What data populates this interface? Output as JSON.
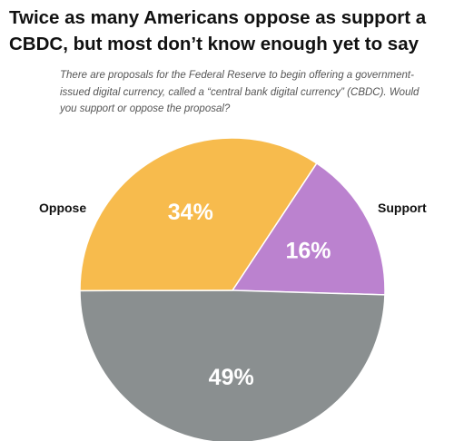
{
  "chart_data": {
    "type": "pie",
    "title": "Twice as many Americans oppose as support a CBDC, but most don’t know enough yet to say",
    "subtitle": "There are proposals for the Federal Reserve to begin offering a government-issued digital currency, called a “central bank digital currency” (CBDC). Would you support or oppose the proposal?",
    "slices": [
      {
        "name": "Support",
        "value": 16,
        "label": "16%",
        "color": "#bb82cf"
      },
      {
        "name": "",
        "value": 49,
        "label": "49%",
        "color": "#8a8f90"
      },
      {
        "name": "Oppose",
        "value": 34,
        "label": "34%",
        "color": "#f7bb4d"
      }
    ],
    "legend": [
      "Oppose",
      "Support"
    ]
  }
}
